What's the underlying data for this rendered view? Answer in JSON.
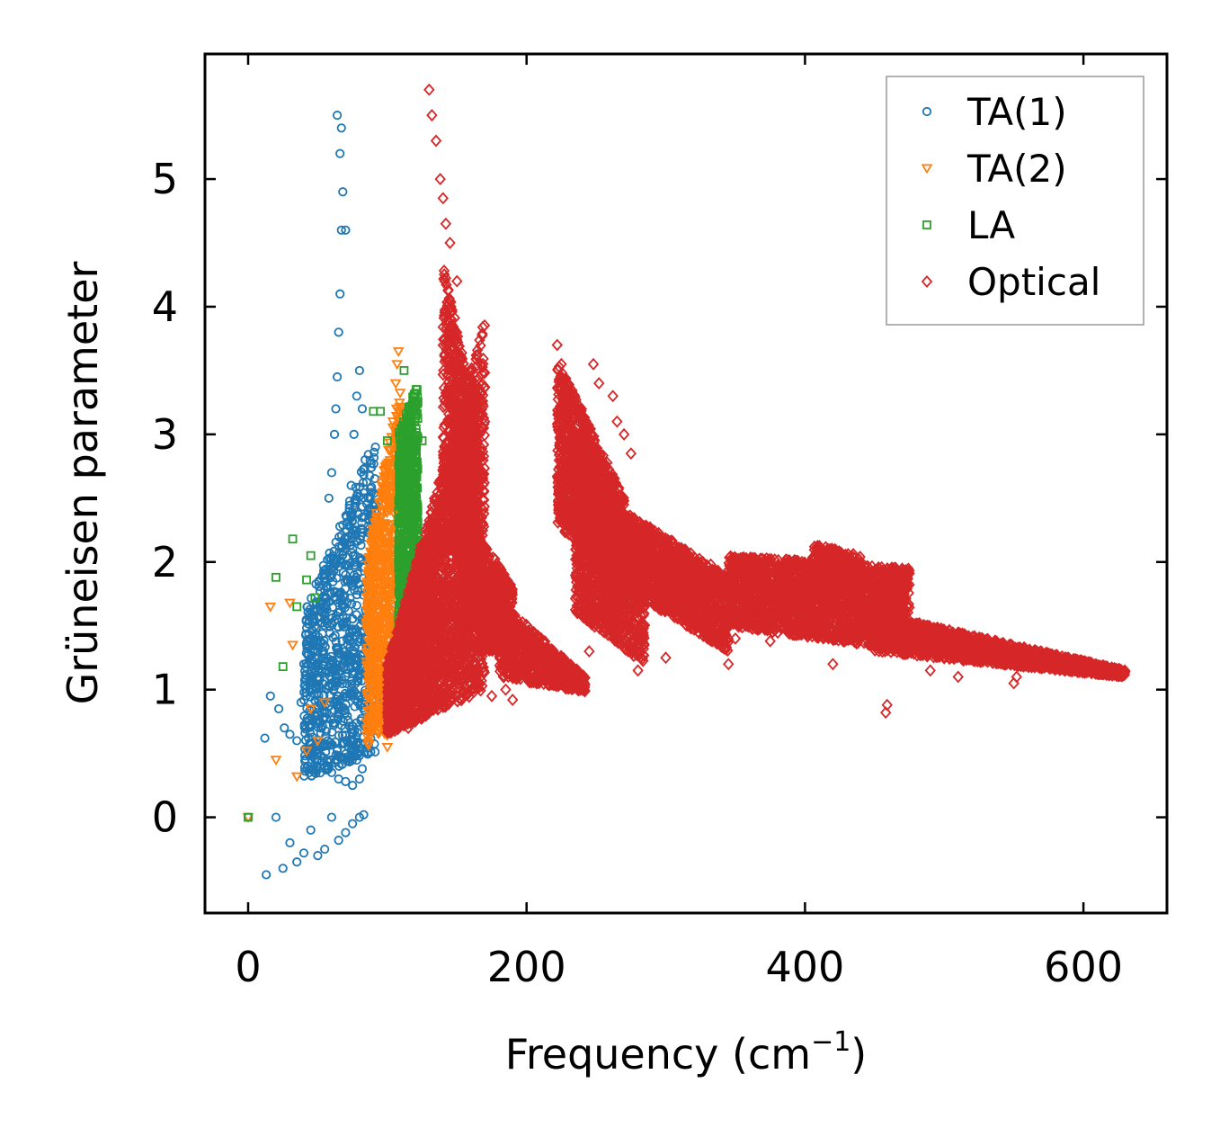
{
  "chart_data": {
    "type": "scatter",
    "xlabel": "Frequency (cm",
    "xlabel_sup": "−1",
    "xlabel_close": ")",
    "ylabel": "Grüneisen parameter",
    "xlim": [
      -31,
      660
    ],
    "ylim": [
      -0.75,
      5.98
    ],
    "xticks": [
      0,
      200,
      400,
      600
    ],
    "xtick_labels": [
      "0",
      "200",
      "400",
      "600"
    ],
    "yticks": [
      0,
      1,
      2,
      3,
      4,
      5
    ],
    "ytick_labels": [
      "0",
      "1",
      "2",
      "3",
      "4",
      "5"
    ],
    "grid": false,
    "legend_position": "top-right",
    "series": [
      {
        "name": "TA(1)",
        "marker": "circle",
        "color": "#1f77b4",
        "points": [
          [
            0,
            0
          ],
          [
            13,
            -0.45
          ],
          [
            20,
            0.0
          ],
          [
            25,
            -0.4
          ],
          [
            30,
            -0.2
          ],
          [
            35,
            -0.35
          ],
          [
            40,
            -0.28
          ],
          [
            45,
            -0.1
          ],
          [
            50,
            -0.3
          ],
          [
            55,
            -0.25
          ],
          [
            60,
            0.0
          ],
          [
            65,
            -0.18
          ],
          [
            70,
            -0.12
          ],
          [
            75,
            -0.05
          ],
          [
            80,
            0.0
          ],
          [
            83,
            0.02
          ],
          [
            12,
            0.62
          ],
          [
            16,
            0.95
          ],
          [
            22,
            0.85
          ],
          [
            26,
            0.7
          ],
          [
            30,
            0.65
          ],
          [
            35,
            0.6
          ],
          [
            38,
            0.9
          ],
          [
            42,
            0.75
          ],
          [
            46,
            0.5
          ],
          [
            50,
            0.45
          ],
          [
            55,
            0.4
          ],
          [
            60,
            0.35
          ],
          [
            65,
            0.3
          ],
          [
            70,
            0.28
          ],
          [
            75,
            0.25
          ],
          [
            80,
            0.3
          ],
          [
            82,
            0.38
          ],
          [
            40,
            1.2
          ],
          [
            45,
            1.4
          ],
          [
            50,
            1.1
          ],
          [
            55,
            1.6
          ],
          [
            58,
            2.5
          ],
          [
            60,
            2.7
          ],
          [
            62,
            3.0
          ],
          [
            63,
            3.2
          ],
          [
            64,
            3.45
          ],
          [
            65,
            3.8
          ],
          [
            66,
            4.1
          ],
          [
            67,
            4.6
          ],
          [
            68,
            4.9
          ],
          [
            70,
            4.6
          ],
          [
            66,
            5.2
          ],
          [
            67,
            5.4
          ],
          [
            64,
            5.5
          ],
          [
            70,
            1.9
          ],
          [
            72,
            2.2
          ],
          [
            74,
            2.6
          ],
          [
            76,
            3.0
          ],
          [
            78,
            3.3
          ],
          [
            80,
            3.5
          ],
          [
            82,
            3.2
          ],
          [
            84,
            2.8
          ],
          [
            86,
            2.4
          ],
          [
            88,
            2.0
          ],
          [
            90,
            1.7
          ],
          [
            92,
            1.4
          ],
          [
            94,
            1.2
          ],
          [
            96,
            1.0
          ],
          [
            98,
            0.9
          ]
        ],
        "bands": [
          {
            "x_range": [
              40,
              92
            ],
            "y_lower_at_start": 0.3,
            "y_lower_at_end": 0.5,
            "y_upper_at_start": 1.6,
            "y_upper_at_end": 3.0,
            "count": 900
          }
        ]
      },
      {
        "name": "TA(2)",
        "marker": "triangle-down",
        "color": "#ff7f0e",
        "points": [
          [
            0,
            0
          ],
          [
            16,
            1.65
          ],
          [
            20,
            0.45
          ],
          [
            30,
            1.68
          ],
          [
            32,
            1.35
          ],
          [
            35,
            0.32
          ],
          [
            42,
            0.52
          ],
          [
            45,
            0.85
          ],
          [
            50,
            0.6
          ],
          [
            55,
            0.9
          ],
          [
            100,
            0.55
          ],
          [
            104,
            3.1
          ],
          [
            106,
            3.4
          ],
          [
            107,
            3.55
          ],
          [
            108,
            3.65
          ]
        ],
        "bands": [
          {
            "x_range": [
              85,
              110
            ],
            "y_lower_at_start": 0.55,
            "y_lower_at_end": 0.7,
            "y_upper_at_start": 2.0,
            "y_upper_at_end": 3.4,
            "count": 800
          }
        ]
      },
      {
        "name": "LA",
        "marker": "square",
        "color": "#2ca02c",
        "points": [
          [
            0,
            0
          ],
          [
            20,
            1.88
          ],
          [
            25,
            1.18
          ],
          [
            32,
            2.18
          ],
          [
            35,
            1.65
          ],
          [
            42,
            1.86
          ],
          [
            45,
            2.05
          ],
          [
            48,
            1.72
          ],
          [
            90,
            3.18
          ],
          [
            95,
            3.18
          ],
          [
            100,
            2.95
          ],
          [
            112,
            3.5
          ],
          [
            125,
            2.95
          ],
          [
            128,
            1.95
          ]
        ],
        "bands": [
          {
            "x_range": [
              108,
              122
            ],
            "y_lower_at_start": 1.05,
            "y_lower_at_end": 1.1,
            "y_upper_at_start": 3.0,
            "y_upper_at_end": 3.4,
            "count": 800
          }
        ]
      },
      {
        "name": "Optical",
        "marker": "diamond",
        "color": "#d62728",
        "points": [
          [
            130,
            5.7
          ],
          [
            132,
            5.5
          ],
          [
            135,
            5.3
          ],
          [
            138,
            5.0
          ],
          [
            140,
            4.85
          ],
          [
            142,
            4.65
          ],
          [
            145,
            4.5
          ],
          [
            150,
            4.2
          ],
          [
            160,
            3.5
          ],
          [
            165,
            3.3
          ],
          [
            170,
            3.1
          ],
          [
            222,
            3.7
          ],
          [
            225,
            3.55
          ],
          [
            248,
            3.55
          ],
          [
            252,
            3.4
          ],
          [
            262,
            3.3
          ],
          [
            265,
            3.1
          ],
          [
            270,
            3.0
          ],
          [
            275,
            2.85
          ],
          [
            280,
            1.15
          ],
          [
            300,
            1.25
          ],
          [
            330,
            1.4
          ],
          [
            345,
            1.2
          ],
          [
            350,
            1.4
          ],
          [
            360,
            1.55
          ],
          [
            375,
            1.38
          ],
          [
            390,
            1.45
          ],
          [
            420,
            1.2
          ],
          [
            458,
            0.82
          ],
          [
            459,
            0.88
          ],
          [
            490,
            1.15
          ],
          [
            510,
            1.1
          ],
          [
            550,
            1.05
          ],
          [
            552,
            1.1
          ],
          [
            470,
            1.45
          ],
          [
            500,
            1.4
          ],
          [
            520,
            1.35
          ],
          [
            115,
            0.7
          ],
          [
            120,
            0.75
          ],
          [
            130,
            0.85
          ],
          [
            140,
            1.2
          ],
          [
            150,
            0.95
          ],
          [
            160,
            1.1
          ],
          [
            175,
            0.95
          ],
          [
            185,
            1.0
          ],
          [
            190,
            0.92
          ],
          [
            200,
            1.1
          ],
          [
            215,
            1.1
          ],
          [
            225,
            1.05
          ],
          [
            240,
            1.0
          ],
          [
            245,
            1.3
          ]
        ],
        "bands": [
          {
            "x_range": [
              100,
              170
            ],
            "y_lower_at_start": 0.65,
            "y_lower_at_end": 1.0,
            "y_upper_at_start": 1.2,
            "y_upper_at_end": 3.9,
            "count": 2600
          },
          {
            "x_range": [
              140,
              165
            ],
            "y_lower_at_start": 2.0,
            "y_lower_at_end": 2.4,
            "y_upper_at_start": 4.4,
            "y_upper_at_end": 3.0,
            "count": 700
          },
          {
            "x_range": [
              150,
              190
            ],
            "y_lower_at_start": 1.3,
            "y_lower_at_end": 1.3,
            "y_upper_at_start": 2.5,
            "y_upper_at_end": 1.8,
            "count": 800
          },
          {
            "x_range": [
              180,
              242
            ],
            "y_lower_at_start": 1.1,
            "y_lower_at_end": 0.98,
            "y_upper_at_start": 1.7,
            "y_upper_at_end": 1.1,
            "count": 700
          },
          {
            "x_range": [
              222,
              270
            ],
            "y_lower_at_start": 2.3,
            "y_lower_at_end": 1.7,
            "y_upper_at_start": 3.6,
            "y_upper_at_end": 2.5,
            "count": 1400
          },
          {
            "x_range": [
              235,
              285
            ],
            "y_lower_at_start": 1.6,
            "y_lower_at_end": 1.2,
            "y_upper_at_start": 2.6,
            "y_upper_at_end": 2.2,
            "count": 1100
          },
          {
            "x_range": [
              270,
              345
            ],
            "y_lower_at_start": 1.8,
            "y_lower_at_end": 1.3,
            "y_upper_at_start": 2.4,
            "y_upper_at_end": 1.9,
            "count": 1200
          },
          {
            "x_range": [
              345,
              475
            ],
            "y_lower_at_start": 1.5,
            "y_lower_at_end": 1.3,
            "y_upper_at_start": 2.05,
            "y_upper_at_end": 1.95,
            "count": 2000
          },
          {
            "x_range": [
              405,
              440
            ],
            "y_lower_at_start": 1.8,
            "y_lower_at_end": 1.7,
            "y_upper_at_start": 2.15,
            "y_upper_at_end": 2.05,
            "count": 400
          },
          {
            "x_range": [
              450,
              630
            ],
            "y_lower_at_start": 1.3,
            "y_lower_at_end": 1.1,
            "y_upper_at_start": 1.6,
            "y_upper_at_end": 1.15,
            "count": 1800
          }
        ]
      }
    ]
  }
}
